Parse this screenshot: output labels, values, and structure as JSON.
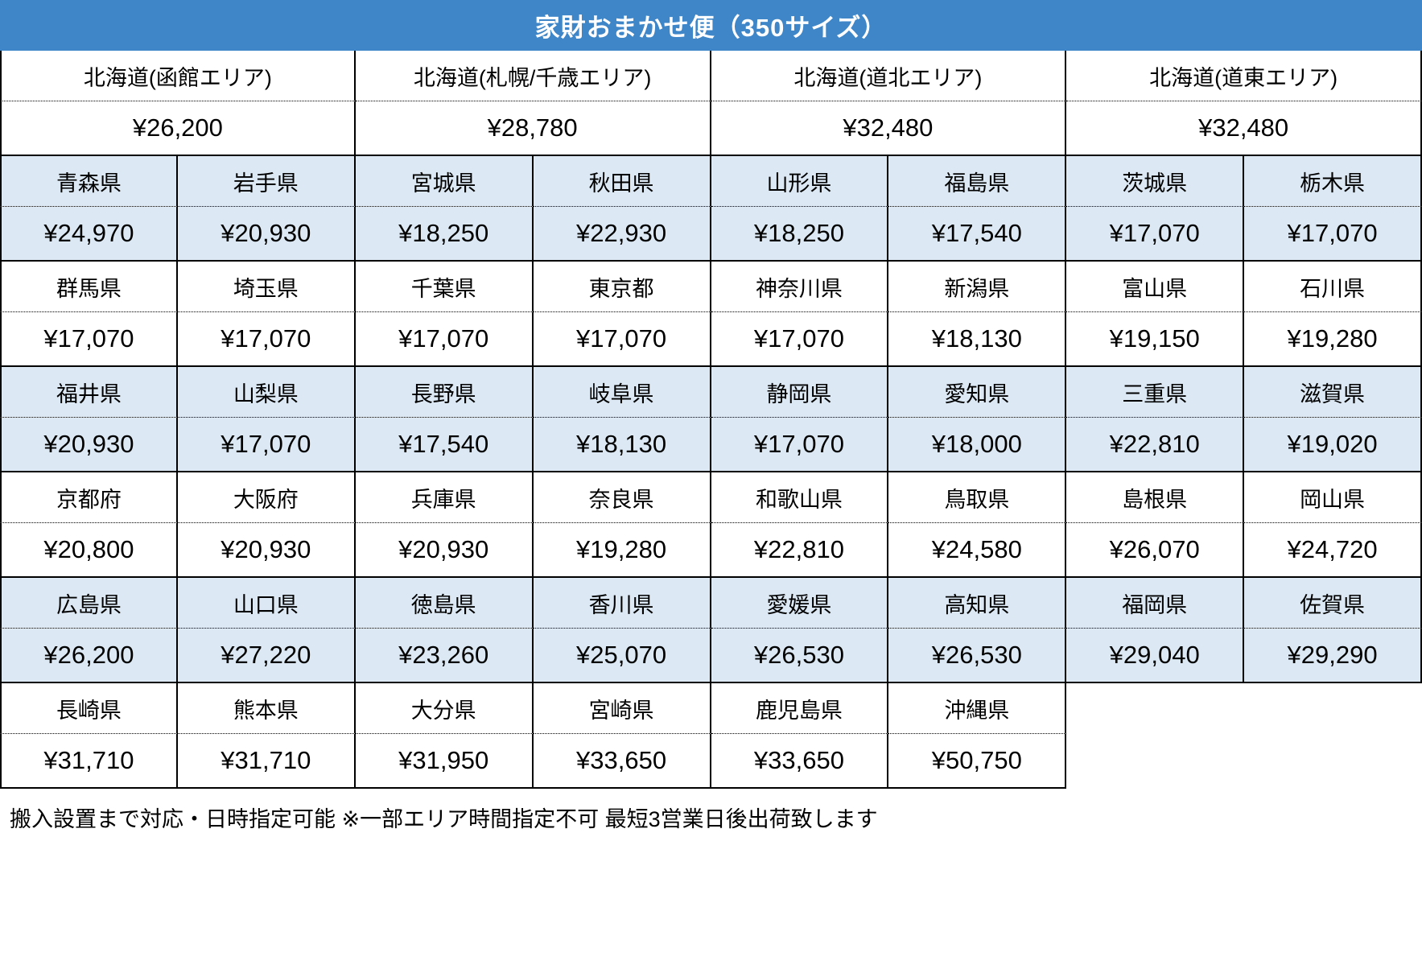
{
  "title": "家財おまかせ便（350サイズ）",
  "footer_note": "搬入設置まで対応・日時指定可能 ※一部エリア時間指定不可 最短3営業日後出荷致します",
  "colors": {
    "header_bg": "#3E86C8",
    "header_text": "#FFFFFF",
    "shaded_row_bg": "#DCE9F5",
    "plain_row_bg": "#FFFFFF",
    "border": "#000000",
    "text": "#000000"
  },
  "table": {
    "columns": 8,
    "hokkaido_groups": [
      {
        "area": "北海道(函館エリア)",
        "price": "¥26,200"
      },
      {
        "area": "北海道(札幌/千歳エリア)",
        "price": "¥28,780"
      },
      {
        "area": "北海道(道北エリア)",
        "price": "¥32,480"
      },
      {
        "area": "北海道(道東エリア)",
        "price": "¥32,480"
      }
    ],
    "prefecture_pairs": [
      {
        "shaded": true,
        "entries": [
          {
            "name": "青森県",
            "price": "¥24,970"
          },
          {
            "name": "岩手県",
            "price": "¥20,930"
          },
          {
            "name": "宮城県",
            "price": "¥18,250"
          },
          {
            "name": "秋田県",
            "price": "¥22,930"
          },
          {
            "name": "山形県",
            "price": "¥18,250"
          },
          {
            "name": "福島県",
            "price": "¥17,540"
          },
          {
            "name": "茨城県",
            "price": "¥17,070"
          },
          {
            "name": "栃木県",
            "price": "¥17,070"
          }
        ]
      },
      {
        "shaded": false,
        "entries": [
          {
            "name": "群馬県",
            "price": "¥17,070"
          },
          {
            "name": "埼玉県",
            "price": "¥17,070"
          },
          {
            "name": "千葉県",
            "price": "¥17,070"
          },
          {
            "name": "東京都",
            "price": "¥17,070"
          },
          {
            "name": "神奈川県",
            "price": "¥17,070"
          },
          {
            "name": "新潟県",
            "price": "¥18,130"
          },
          {
            "name": "富山県",
            "price": "¥19,150"
          },
          {
            "name": "石川県",
            "price": "¥19,280"
          }
        ]
      },
      {
        "shaded": true,
        "entries": [
          {
            "name": "福井県",
            "price": "¥20,930"
          },
          {
            "name": "山梨県",
            "price": "¥17,070"
          },
          {
            "name": "長野県",
            "price": "¥17,540"
          },
          {
            "name": "岐阜県",
            "price": "¥18,130"
          },
          {
            "name": "静岡県",
            "price": "¥17,070"
          },
          {
            "name": "愛知県",
            "price": "¥18,000"
          },
          {
            "name": "三重県",
            "price": "¥22,810"
          },
          {
            "name": "滋賀県",
            "price": "¥19,020"
          }
        ]
      },
      {
        "shaded": false,
        "entries": [
          {
            "name": "京都府",
            "price": "¥20,800"
          },
          {
            "name": "大阪府",
            "price": "¥20,930"
          },
          {
            "name": "兵庫県",
            "price": "¥20,930"
          },
          {
            "name": "奈良県",
            "price": "¥19,280"
          },
          {
            "name": "和歌山県",
            "price": "¥22,810"
          },
          {
            "name": "鳥取県",
            "price": "¥24,580"
          },
          {
            "name": "島根県",
            "price": "¥26,070"
          },
          {
            "name": "岡山県",
            "price": "¥24,720"
          }
        ]
      },
      {
        "shaded": true,
        "entries": [
          {
            "name": "広島県",
            "price": "¥26,200"
          },
          {
            "name": "山口県",
            "price": "¥27,220"
          },
          {
            "name": "徳島県",
            "price": "¥23,260"
          },
          {
            "name": "香川県",
            "price": "¥25,070"
          },
          {
            "name": "愛媛県",
            "price": "¥26,530"
          },
          {
            "name": "高知県",
            "price": "¥26,530"
          },
          {
            "name": "福岡県",
            "price": "¥29,040"
          },
          {
            "name": "佐賀県",
            "price": "¥29,290"
          }
        ]
      },
      {
        "shaded": false,
        "entries": [
          {
            "name": "長崎県",
            "price": "¥31,710"
          },
          {
            "name": "熊本県",
            "price": "¥31,710"
          },
          {
            "name": "大分県",
            "price": "¥31,950"
          },
          {
            "name": "宮崎県",
            "price": "¥33,650"
          },
          {
            "name": "鹿児島県",
            "price": "¥33,650"
          },
          {
            "name": "沖縄県",
            "price": "¥50,750"
          }
        ]
      }
    ]
  }
}
